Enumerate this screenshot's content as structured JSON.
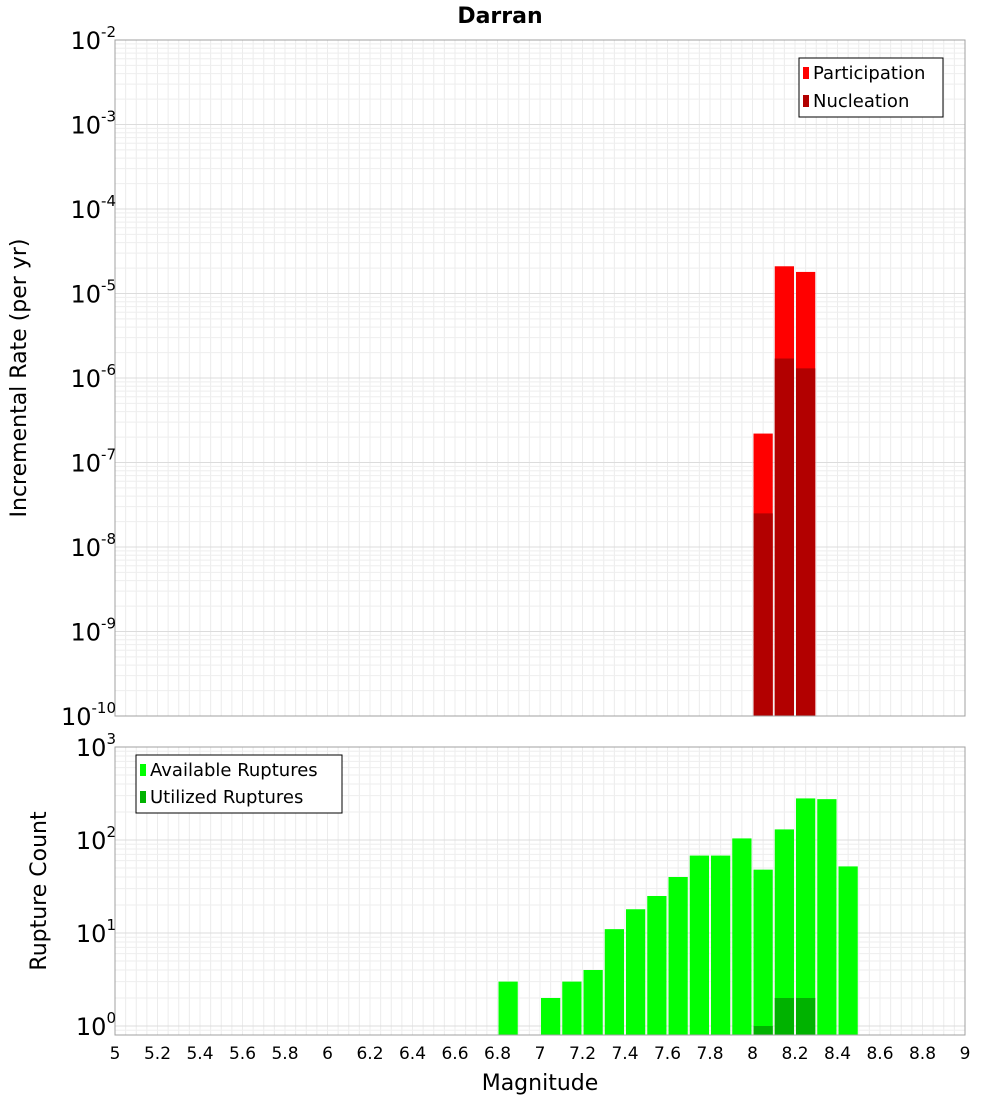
{
  "chart_data": [
    {
      "type": "bar",
      "title": "Darran",
      "ylabel": "Incremental Rate (per yr)",
      "xlabel": "",
      "y_scale": "log",
      "ylim": [
        1e-10,
        0.01
      ],
      "xlim": [
        5,
        9
      ],
      "grid": true,
      "legend_position": "top-right",
      "y_ticks": [
        {
          "base": "10",
          "exp": "-2"
        },
        {
          "base": "10",
          "exp": "-3"
        },
        {
          "base": "10",
          "exp": "-4"
        },
        {
          "base": "10",
          "exp": "-5"
        },
        {
          "base": "10",
          "exp": "-6"
        },
        {
          "base": "10",
          "exp": "-7"
        },
        {
          "base": "10",
          "exp": "-8"
        },
        {
          "base": "10",
          "exp": "-9"
        },
        {
          "base": "10",
          "exp": "-10"
        }
      ],
      "series": [
        {
          "name": "Participation",
          "color": "#ff0000",
          "x": [
            8.05,
            8.15,
            8.25
          ],
          "values": [
            2.2e-07,
            2.1e-05,
            1.8e-05
          ]
        },
        {
          "name": "Nucleation",
          "color": "#b20000",
          "x": [
            8.05,
            8.15,
            8.25
          ],
          "values": [
            2.5e-08,
            1.7e-06,
            1.3e-06
          ]
        }
      ]
    },
    {
      "type": "bar",
      "title": "",
      "ylabel": "Rupture Count",
      "xlabel": "Magnitude",
      "y_scale": "log",
      "ylim": [
        0.8,
        1000
      ],
      "xlim": [
        5,
        9
      ],
      "grid": true,
      "legend_position": "top-left",
      "y_ticks": [
        {
          "base": "10",
          "exp": "3",
          "value": 1000
        },
        {
          "base": "10",
          "exp": "2",
          "value": 100
        },
        {
          "base": "10",
          "exp": "1",
          "value": 10
        },
        {
          "base": "10",
          "exp": "0",
          "value": 1
        }
      ],
      "x_ticks": [
        "5",
        "5.2",
        "5.4",
        "5.6",
        "5.8",
        "6",
        "6.2",
        "6.4",
        "6.6",
        "6.8",
        "7",
        "7.2",
        "7.4",
        "7.6",
        "7.8",
        "8",
        "8.2",
        "8.4",
        "8.6",
        "8.8",
        "9"
      ],
      "series": [
        {
          "name": "Available Ruptures",
          "color": "#00ff00",
          "x": [
            6.85,
            7.05,
            7.15,
            7.25,
            7.35,
            7.45,
            7.55,
            7.65,
            7.75,
            7.85,
            7.95,
            8.05,
            8.15,
            8.25,
            8.35,
            8.45
          ],
          "values": [
            3,
            2,
            3,
            4,
            11,
            18,
            25,
            40,
            68,
            68,
            104,
            48,
            130,
            280,
            275,
            52
          ]
        },
        {
          "name": "Utilized Ruptures",
          "color": "#00b200",
          "x": [
            8.05,
            8.15,
            8.25
          ],
          "values": [
            1,
            2,
            2
          ]
        }
      ]
    }
  ]
}
